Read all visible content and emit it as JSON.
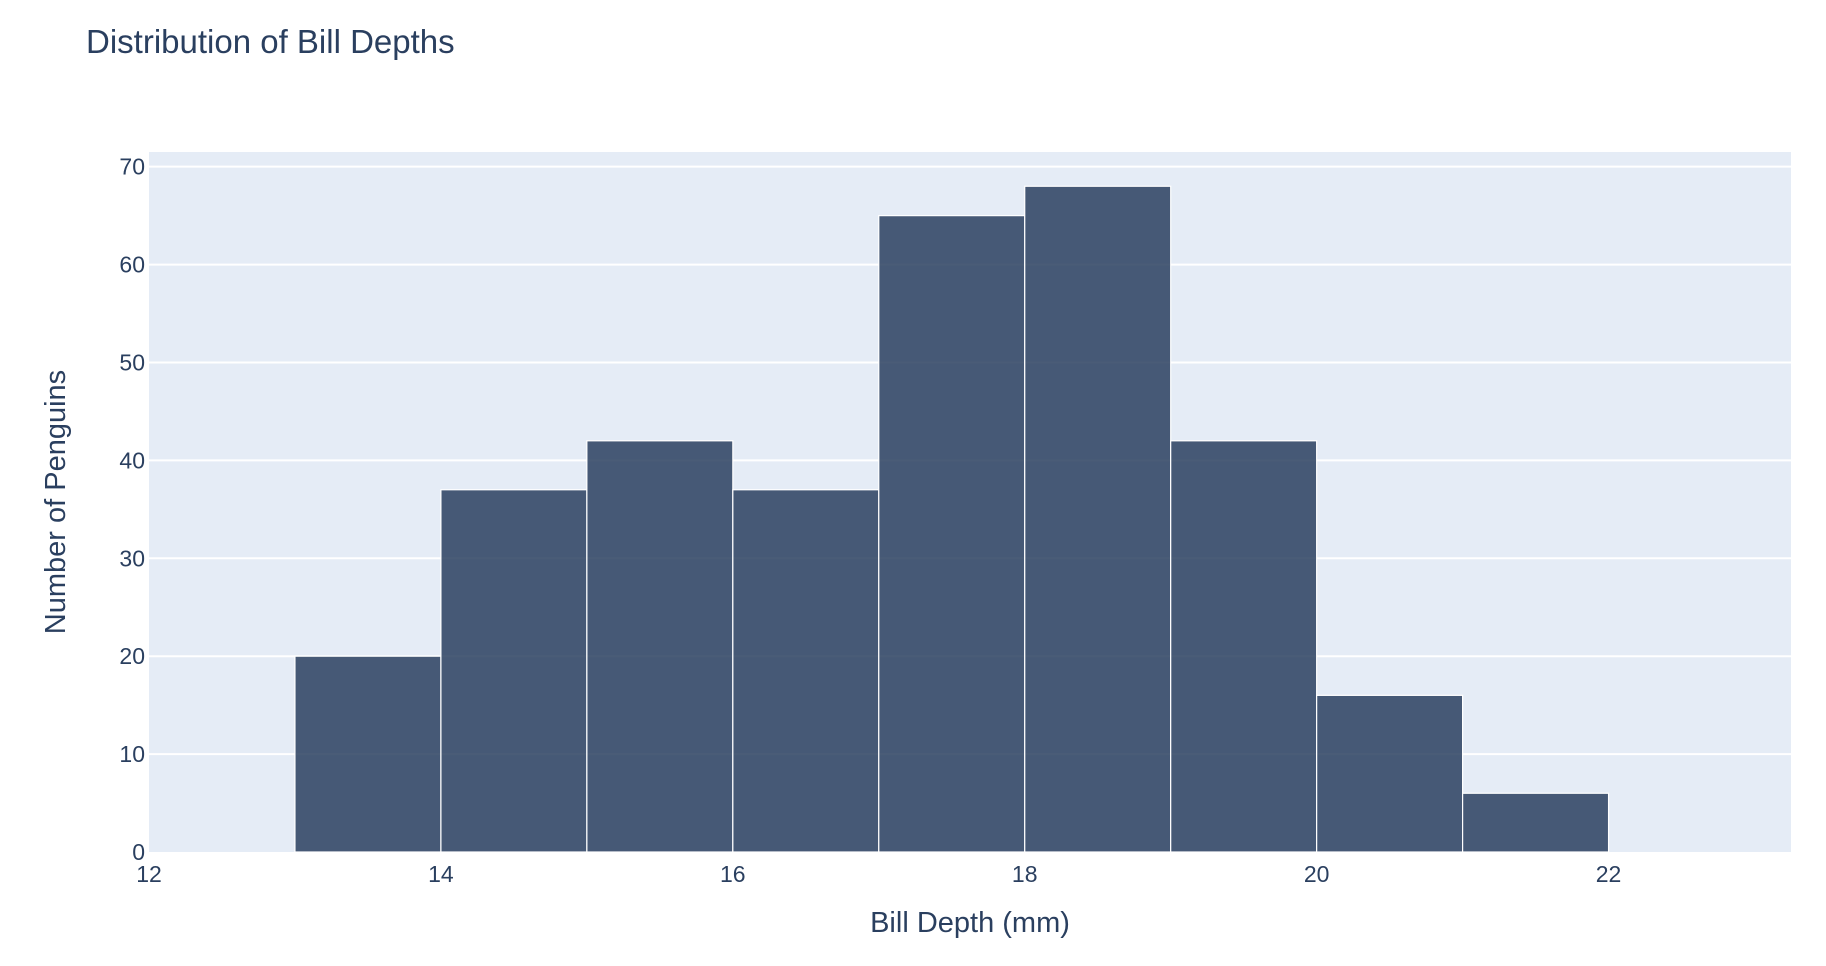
{
  "chart_data": {
    "type": "bar",
    "title": "Distribution of Bill Depths",
    "xlabel": "Bill Depth (mm)",
    "ylabel": "Number of Penguins",
    "bin_edges": [
      13,
      14,
      15,
      16,
      17,
      18,
      19,
      20,
      21,
      22
    ],
    "values": [
      20,
      37,
      42,
      37,
      65,
      68,
      42,
      16,
      6
    ],
    "xlim": [
      12,
      23.25
    ],
    "ylim": [
      0,
      71.5
    ],
    "xticks": [
      12,
      14,
      16,
      18,
      20,
      22
    ],
    "yticks": [
      0,
      10,
      20,
      30,
      40,
      50,
      60,
      70
    ],
    "grid": true,
    "colors": {
      "bar": "#2a3f5f",
      "plot_background": "#e5ecf6",
      "gridline": "#ffffff",
      "text": "#2a3f5f"
    }
  }
}
